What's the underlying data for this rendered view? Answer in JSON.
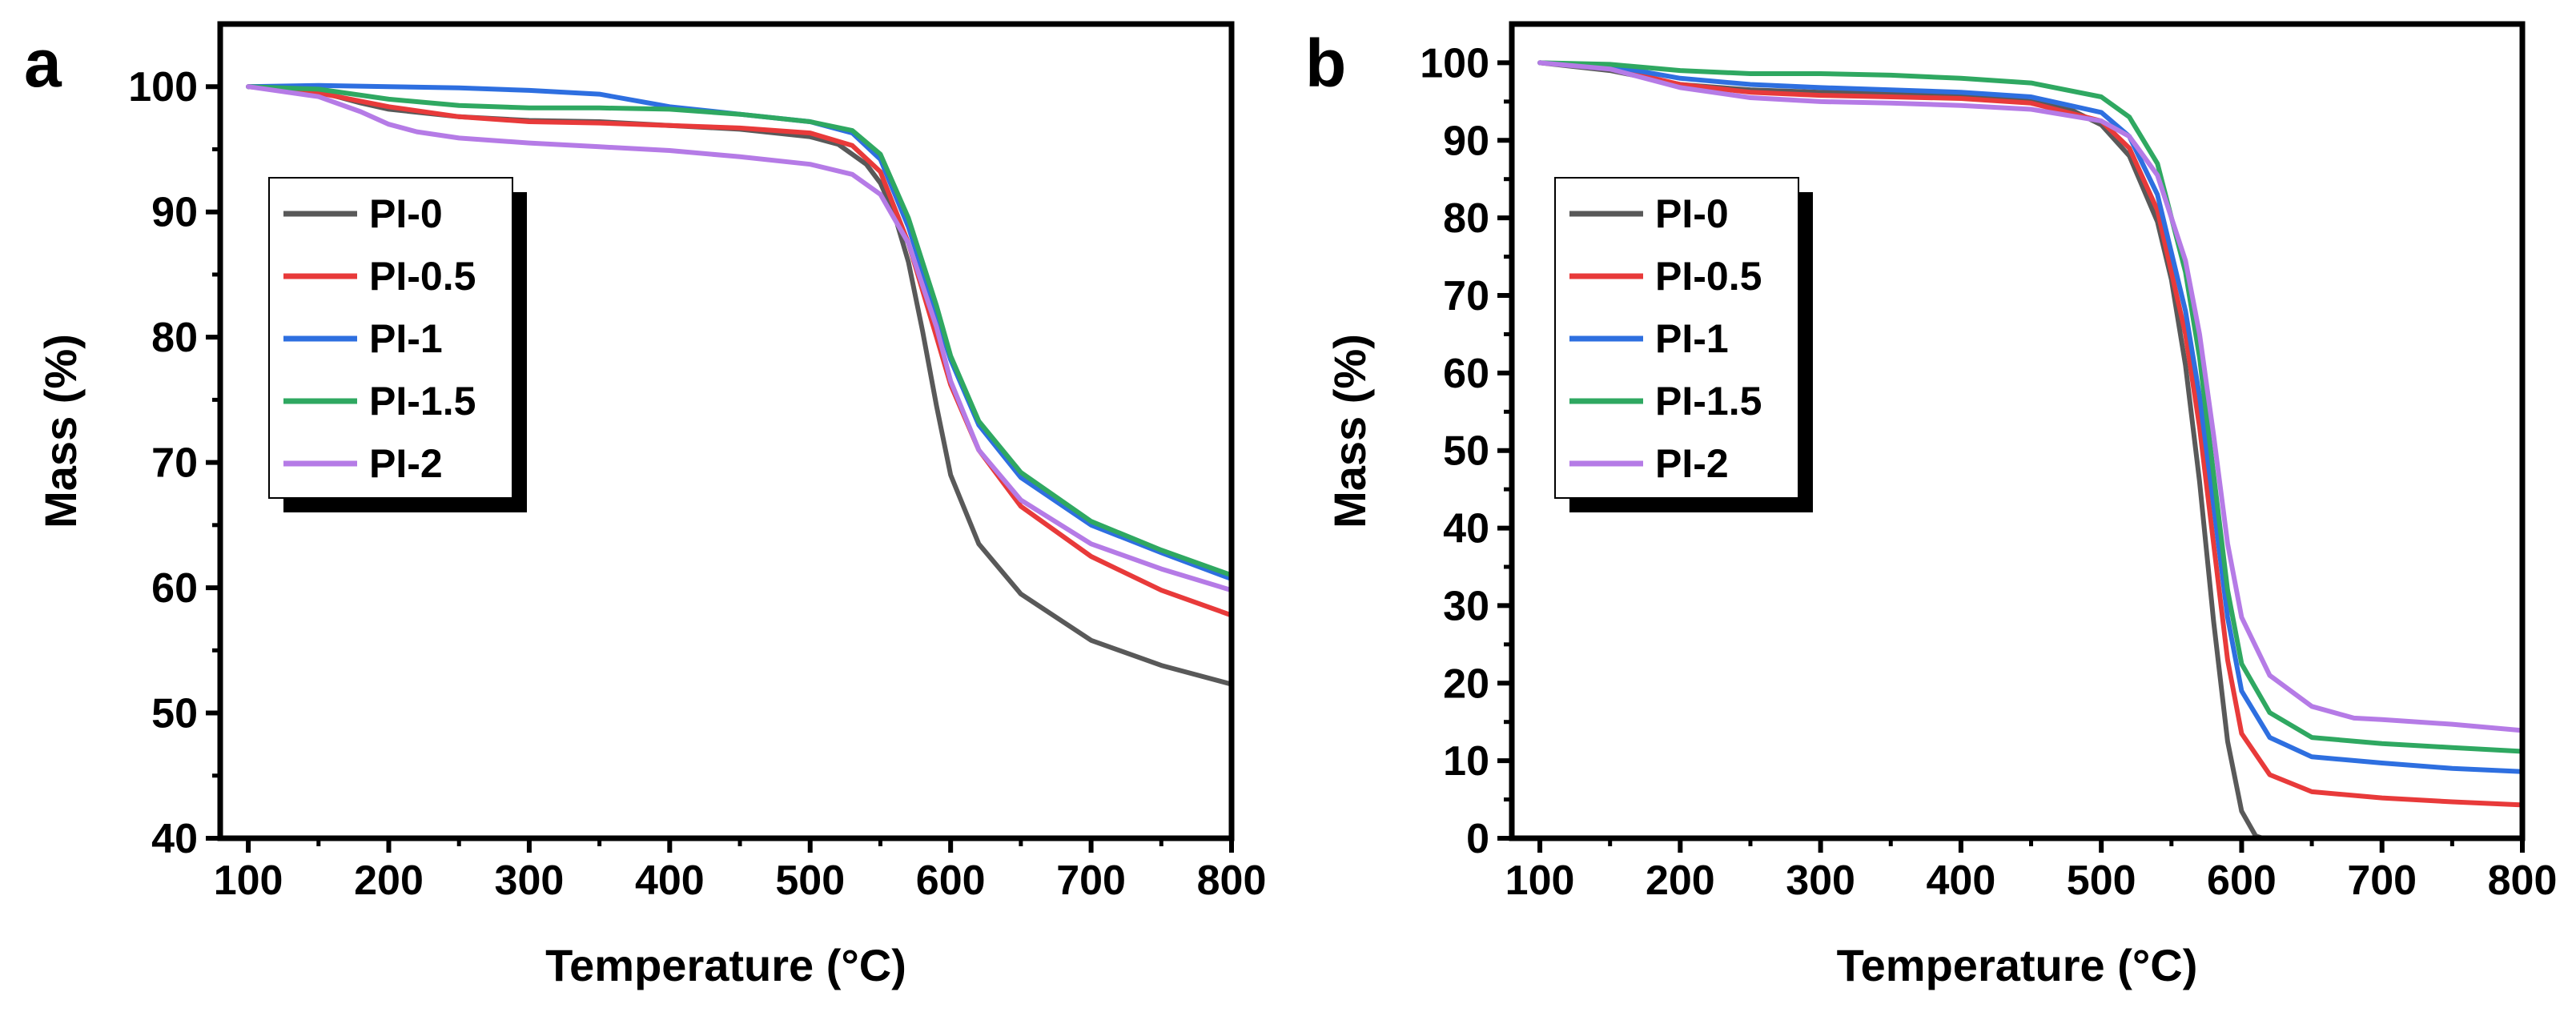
{
  "figure": {
    "panels": [
      "a",
      "b"
    ]
  },
  "chart_data": [
    {
      "type": "line",
      "panel_label": "a",
      "xlabel": "Temperature (°C)",
      "ylabel": "Mass (%)",
      "xlim": [
        80,
        800
      ],
      "ylim": [
        40,
        105
      ],
      "xticks": [
        100,
        200,
        300,
        400,
        500,
        600,
        700,
        800
      ],
      "yticks": [
        40,
        50,
        60,
        70,
        80,
        90,
        100
      ],
      "legend_position": "upper-left",
      "series": [
        {
          "name": "PI-0",
          "color": "#595959",
          "x": [
            100,
            120,
            150,
            180,
            200,
            250,
            300,
            350,
            400,
            450,
            500,
            520,
            540,
            550,
            560,
            570,
            580,
            590,
            600,
            620,
            650,
            700,
            750,
            800
          ],
          "y": [
            100,
            100,
            99.6,
            98.7,
            98.2,
            97.6,
            97.3,
            97.2,
            96.9,
            96.6,
            96.0,
            95.4,
            93.8,
            92.3,
            89.8,
            86.0,
            80.5,
            74.5,
            69.0,
            63.5,
            59.5,
            55.8,
            53.8,
            52.3
          ]
        },
        {
          "name": "PI-0.5",
          "color": "#e83a3a",
          "x": [
            100,
            150,
            200,
            250,
            300,
            350,
            400,
            450,
            500,
            530,
            550,
            570,
            590,
            600,
            620,
            650,
            700,
            750,
            800
          ],
          "y": [
            100,
            99.5,
            98.4,
            97.6,
            97.2,
            97.1,
            96.9,
            96.7,
            96.3,
            95.3,
            93.2,
            87.5,
            80.0,
            76.2,
            71.0,
            66.5,
            62.5,
            59.8,
            57.8
          ]
        },
        {
          "name": "PI-1",
          "color": "#2e6fe0",
          "x": [
            100,
            150,
            200,
            250,
            300,
            350,
            400,
            450,
            500,
            530,
            550,
            570,
            590,
            600,
            620,
            650,
            700,
            750,
            800
          ],
          "y": [
            100,
            100.1,
            100,
            99.9,
            99.7,
            99.4,
            98.4,
            97.8,
            97.2,
            96.3,
            94.2,
            88.8,
            81.8,
            78.2,
            73.0,
            68.8,
            65.0,
            62.8,
            60.7
          ]
        },
        {
          "name": "PI-1.5",
          "color": "#2fa861",
          "x": [
            100,
            150,
            200,
            250,
            300,
            350,
            400,
            450,
            500,
            530,
            550,
            570,
            590,
            600,
            620,
            650,
            700,
            750,
            800
          ],
          "y": [
            100,
            99.8,
            99.0,
            98.5,
            98.3,
            98.3,
            98.2,
            97.8,
            97.2,
            96.5,
            94.6,
            89.5,
            82.5,
            78.5,
            73.3,
            69.2,
            65.3,
            63.0,
            61.0
          ]
        },
        {
          "name": "PI-2",
          "color": "#b57be6",
          "x": [
            100,
            150,
            180,
            200,
            220,
            250,
            300,
            350,
            400,
            450,
            500,
            530,
            550,
            570,
            590,
            600,
            620,
            650,
            700,
            750,
            800
          ],
          "y": [
            100,
            99.2,
            98.0,
            97.0,
            96.4,
            95.9,
            95.5,
            95.2,
            94.9,
            94.4,
            93.8,
            93.0,
            91.4,
            87.5,
            80.8,
            76.5,
            71.0,
            67.0,
            63.5,
            61.5,
            59.8
          ]
        }
      ]
    },
    {
      "type": "line",
      "panel_label": "b",
      "xlabel": "Temperature (°C)",
      "ylabel": "Mass (%)",
      "xlim": [
        80,
        800
      ],
      "ylim": [
        0,
        105
      ],
      "xticks": [
        100,
        200,
        300,
        400,
        500,
        600,
        700,
        800
      ],
      "yticks": [
        0,
        10,
        20,
        30,
        40,
        50,
        60,
        70,
        80,
        90,
        100
      ],
      "legend_position": "upper-left",
      "series": [
        {
          "name": "PI-0",
          "color": "#595959",
          "x": [
            100,
            150,
            200,
            250,
            300,
            350,
            400,
            450,
            480,
            500,
            520,
            540,
            550,
            560,
            570,
            580,
            590,
            600,
            610,
            615
          ],
          "y": [
            100,
            99,
            97.2,
            96.5,
            96.2,
            96.0,
            95.8,
            95.0,
            93.8,
            92.0,
            88.0,
            79.5,
            72.0,
            61.0,
            46.0,
            28.0,
            12.5,
            3.5,
            0.3,
            0
          ]
        },
        {
          "name": "PI-0.5",
          "color": "#e83a3a",
          "x": [
            100,
            150,
            200,
            250,
            300,
            350,
            400,
            450,
            500,
            520,
            540,
            560,
            570,
            580,
            590,
            600,
            620,
            650,
            700,
            750,
            800
          ],
          "y": [
            100,
            99.3,
            97.2,
            96.2,
            95.8,
            95.6,
            95.4,
            94.8,
            92.5,
            89.0,
            81.0,
            65.0,
            53.0,
            38.0,
            23.0,
            13.5,
            8.2,
            6.0,
            5.2,
            4.7,
            4.3
          ]
        },
        {
          "name": "PI-1",
          "color": "#2e6fe0",
          "x": [
            100,
            150,
            200,
            250,
            300,
            350,
            400,
            450,
            500,
            520,
            540,
            560,
            570,
            580,
            590,
            600,
            620,
            650,
            700,
            750,
            800
          ],
          "y": [
            100,
            99.6,
            98.0,
            97.2,
            96.8,
            96.5,
            96.2,
            95.6,
            93.6,
            90.5,
            83.0,
            68.0,
            57.0,
            43.0,
            28.5,
            19.0,
            13.0,
            10.5,
            9.7,
            9.0,
            8.6
          ]
        },
        {
          "name": "PI-1.5",
          "color": "#2fa861",
          "x": [
            100,
            150,
            200,
            250,
            300,
            350,
            400,
            450,
            500,
            520,
            540,
            560,
            570,
            580,
            590,
            600,
            620,
            650,
            700,
            750,
            800
          ],
          "y": [
            100,
            99.8,
            99.0,
            98.6,
            98.6,
            98.4,
            98.0,
            97.4,
            95.6,
            93.0,
            87.0,
            73.0,
            62.0,
            47.0,
            32.0,
            22.5,
            16.2,
            13.0,
            12.2,
            11.7,
            11.2
          ]
        },
        {
          "name": "PI-2",
          "color": "#b57be6",
          "x": [
            100,
            150,
            200,
            250,
            300,
            350,
            400,
            450,
            500,
            520,
            540,
            560,
            570,
            580,
            590,
            600,
            620,
            650,
            680,
            700,
            750,
            800
          ],
          "y": [
            100,
            99.2,
            96.8,
            95.5,
            95.0,
            94.8,
            94.5,
            94.0,
            92.5,
            90.5,
            85.5,
            74.5,
            65.0,
            52.0,
            38.0,
            28.5,
            21.0,
            17.0,
            15.5,
            15.3,
            14.7,
            13.9
          ]
        }
      ]
    }
  ]
}
